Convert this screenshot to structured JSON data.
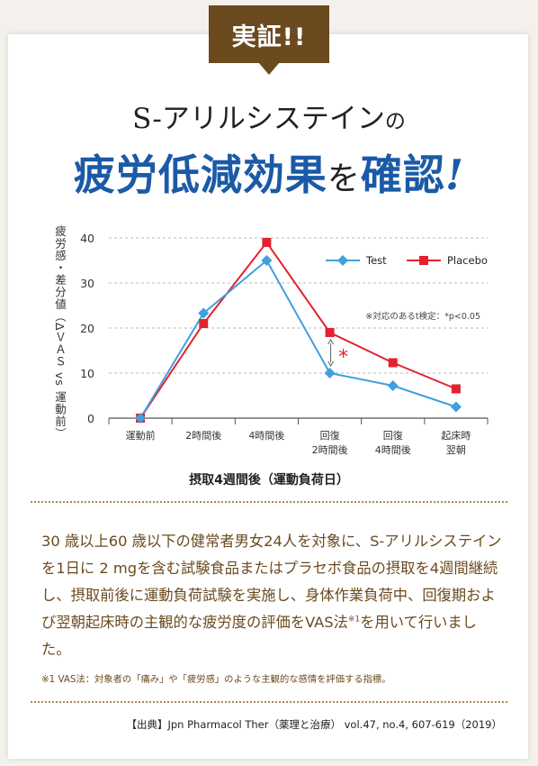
{
  "badge": {
    "label": "実証!!"
  },
  "title": {
    "line1_main": "S-アリルシステイン",
    "line1_suffix": "の",
    "line2_a": "疲労低減効果",
    "line2_b": "を",
    "line2_c": "確認",
    "line2_d": "!"
  },
  "colors": {
    "brand_brown": "#6b4a1f",
    "headline_blue": "#1b5aa6",
    "test": "#3f9fdf",
    "placebo": "#e2222e"
  },
  "chart_data": {
    "type": "line",
    "categories": [
      "運動前",
      "2時間後",
      "4時間後",
      "回復\n2時間後",
      "回復\n4時間後",
      "起床時\n翌朝"
    ],
    "ylabel": "疲労感・差分値（ΔＶＡＳ vs 運動前）",
    "xlabel": "摂取4週間後（運動負荷日）",
    "ylim": [
      0,
      40
    ],
    "yticks": [
      0,
      10,
      20,
      30,
      40
    ],
    "grid": "horizontal-dashed",
    "legend_position": "top-right",
    "note": "※対応のあるt検定：*p<0.05",
    "significance": {
      "category_index": 3,
      "marker": "*"
    },
    "series": [
      {
        "name": "Test",
        "marker": "diamond",
        "values": [
          0,
          23.3,
          35,
          10,
          7.2,
          2.5
        ]
      },
      {
        "name": "Placebo",
        "marker": "square",
        "values": [
          0,
          21,
          39,
          19,
          12.3,
          6.5
        ]
      }
    ]
  },
  "description": {
    "text_before_sup": "30 歳以上60 歳以下の健常者男女24人を対象に、S-アリルシステインを1日に 2 mgを含む試験食品またはプラセボ食品の摂取を4週間継続し、摂取前後に運動負荷試験を実施し、身体作業負荷中、回復期および翌朝起床時の主観的な疲労度の評価をVAS法",
    "sup": "※1",
    "text_after_sup": "を用いて行いました。"
  },
  "footnote": "※1 VAS法：対象者の「痛み」や「疲労感」のような主観的な感情を評価する指標。",
  "source": "【出典】Jpn Pharmacol Ther（薬理と治療） vol.47, no.4, 607-619（2019）"
}
